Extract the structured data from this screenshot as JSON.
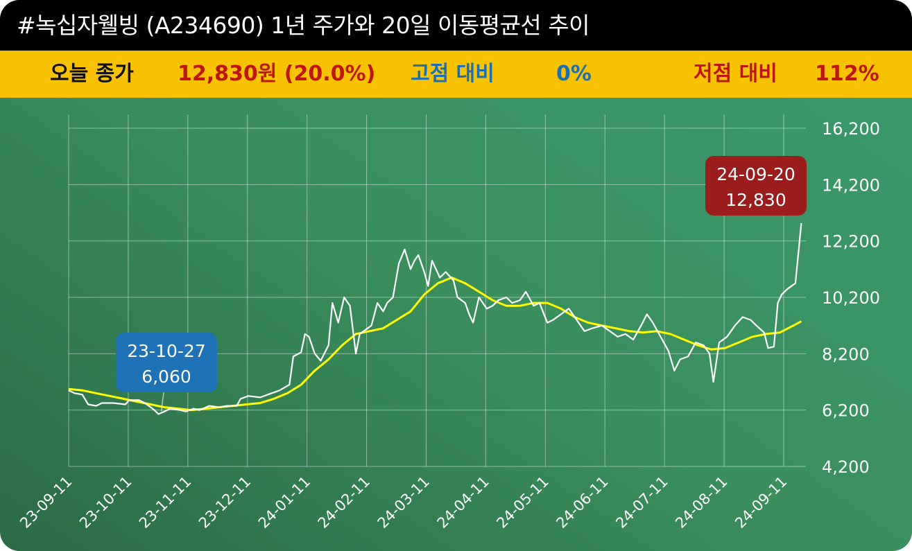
{
  "header": {
    "title": "#녹십자웰빙 (A234690) 1년 주가와 20일 이동평균선 추이"
  },
  "stats": {
    "close_label": "오늘 종가",
    "close_value": "12,830원 (20.0%)",
    "high_label": "고점 대비",
    "high_value": "0%",
    "low_label": "저점 대비",
    "low_value": "112%"
  },
  "colors": {
    "background_green": "#3a8f5c",
    "header_black": "#000000",
    "stats_yellow": "#f7c300",
    "price_line": "#ffffff",
    "ma_line": "#ffff00",
    "close_label": "#111111",
    "red_value": "#c0150f",
    "blue_value": "#1f6fb0",
    "low_callout": "#1f72b5",
    "high_callout": "#9b1c1c"
  },
  "chart_data": {
    "type": "line",
    "x_dates": [
      "23-09-11",
      "23-10-11",
      "23-11-11",
      "23-12-11",
      "24-01-11",
      "24-02-11",
      "24-03-11",
      "24-04-11",
      "24-05-11",
      "24-06-11",
      "24-07-11",
      "24-08-11",
      "24-09-11"
    ],
    "yticks": [
      "16,200",
      "14,200",
      "12,200",
      "10,200",
      "8,200",
      "6,200",
      "4,200"
    ],
    "ylim": [
      4200,
      16200
    ],
    "grid": true,
    "series": [
      {
        "key": "price",
        "points": [
          [
            "2023-09-11",
            6900
          ],
          [
            "2023-09-14",
            6800
          ],
          [
            "2023-09-18",
            6750
          ],
          [
            "2023-09-21",
            6400
          ],
          [
            "2023-09-25",
            6350
          ],
          [
            "2023-09-28",
            6450
          ],
          [
            "2023-10-04",
            6450
          ],
          [
            "2023-10-10",
            6400
          ],
          [
            "2023-10-12",
            6550
          ],
          [
            "2023-10-17",
            6550
          ],
          [
            "2023-10-20",
            6450
          ],
          [
            "2023-10-24",
            6250
          ],
          [
            "2023-10-27",
            6060
          ],
          [
            "2023-10-30",
            6150
          ],
          [
            "2023-11-02",
            6250
          ],
          [
            "2023-11-07",
            6200
          ],
          [
            "2023-11-10",
            6150
          ],
          [
            "2023-11-14",
            6250
          ],
          [
            "2023-11-17",
            6200
          ],
          [
            "2023-11-22",
            6350
          ],
          [
            "2023-11-27",
            6300
          ],
          [
            "2023-12-01",
            6350
          ],
          [
            "2023-12-06",
            6350
          ],
          [
            "2023-12-08",
            6600
          ],
          [
            "2023-12-12",
            6700
          ],
          [
            "2023-12-18",
            6650
          ],
          [
            "2023-12-22",
            6750
          ],
          [
            "2023-12-28",
            6900
          ],
          [
            "2024-01-02",
            7100
          ],
          [
            "2024-01-04",
            8100
          ],
          [
            "2024-01-08",
            8250
          ],
          [
            "2024-01-10",
            8900
          ],
          [
            "2024-01-12",
            8800
          ],
          [
            "2024-01-15",
            8200
          ],
          [
            "2024-01-18",
            7950
          ],
          [
            "2024-01-22",
            8500
          ],
          [
            "2024-01-24",
            10000
          ],
          [
            "2024-01-27",
            9300
          ],
          [
            "2024-01-30",
            10200
          ],
          [
            "2024-02-02",
            9900
          ],
          [
            "2024-02-05",
            8200
          ],
          [
            "2024-02-07",
            8900
          ],
          [
            "2024-02-13",
            9200
          ],
          [
            "2024-02-16",
            10000
          ],
          [
            "2024-02-19",
            9700
          ],
          [
            "2024-02-21",
            10000
          ],
          [
            "2024-02-24",
            10200
          ],
          [
            "2024-02-27",
            11400
          ],
          [
            "2024-03-01",
            11900
          ],
          [
            "2024-03-04",
            11200
          ],
          [
            "2024-03-06",
            11500
          ],
          [
            "2024-03-08",
            11700
          ],
          [
            "2024-03-11",
            11100
          ],
          [
            "2024-03-13",
            10600
          ],
          [
            "2024-03-15",
            11500
          ],
          [
            "2024-03-19",
            10900
          ],
          [
            "2024-03-22",
            11100
          ],
          [
            "2024-03-26",
            10800
          ],
          [
            "2024-03-28",
            10200
          ],
          [
            "2024-04-01",
            10000
          ],
          [
            "2024-04-03",
            9600
          ],
          [
            "2024-04-05",
            9300
          ],
          [
            "2024-04-08",
            10200
          ],
          [
            "2024-04-12",
            9800
          ],
          [
            "2024-04-15",
            9900
          ],
          [
            "2024-04-18",
            10100
          ],
          [
            "2024-04-22",
            10200
          ],
          [
            "2024-04-25",
            10000
          ],
          [
            "2024-04-29",
            10100
          ],
          [
            "2024-05-02",
            10400
          ],
          [
            "2024-05-06",
            9900
          ],
          [
            "2024-05-09",
            10000
          ],
          [
            "2024-05-13",
            9300
          ],
          [
            "2024-05-16",
            9400
          ],
          [
            "2024-05-20",
            9600
          ],
          [
            "2024-05-24",
            9800
          ],
          [
            "2024-05-28",
            9400
          ],
          [
            "2024-06-01",
            9000
          ],
          [
            "2024-06-05",
            9100
          ],
          [
            "2024-06-10",
            9200
          ],
          [
            "2024-06-14",
            9000
          ],
          [
            "2024-06-18",
            8800
          ],
          [
            "2024-06-22",
            8900
          ],
          [
            "2024-06-26",
            8700
          ],
          [
            "2024-06-30",
            9200
          ],
          [
            "2024-07-03",
            9600
          ],
          [
            "2024-07-06",
            9300
          ],
          [
            "2024-07-10",
            8800
          ],
          [
            "2024-07-14",
            8300
          ],
          [
            "2024-07-17",
            7600
          ],
          [
            "2024-07-20",
            8000
          ],
          [
            "2024-07-24",
            8100
          ],
          [
            "2024-07-28",
            8600
          ],
          [
            "2024-08-01",
            8500
          ],
          [
            "2024-08-04",
            8200
          ],
          [
            "2024-08-06",
            7200
          ],
          [
            "2024-08-09",
            8600
          ],
          [
            "2024-08-13",
            8800
          ],
          [
            "2024-08-17",
            9200
          ],
          [
            "2024-08-21",
            9500
          ],
          [
            "2024-08-25",
            9400
          ],
          [
            "2024-08-28",
            9200
          ],
          [
            "2024-09-01",
            8950
          ],
          [
            "2024-09-03",
            8400
          ],
          [
            "2024-09-06",
            8450
          ],
          [
            "2024-09-08",
            10000
          ],
          [
            "2024-09-10",
            10300
          ],
          [
            "2024-09-13",
            10500
          ],
          [
            "2024-09-17",
            10700
          ],
          [
            "2024-09-20",
            12830
          ]
        ]
      },
      {
        "key": "ma20",
        "points": [
          [
            "2023-09-11",
            6950
          ],
          [
            "2023-09-18",
            6900
          ],
          [
            "2023-09-25",
            6800
          ],
          [
            "2023-10-02",
            6700
          ],
          [
            "2023-10-09",
            6600
          ],
          [
            "2023-10-16",
            6500
          ],
          [
            "2023-10-23",
            6400
          ],
          [
            "2023-10-30",
            6300
          ],
          [
            "2023-11-06",
            6250
          ],
          [
            "2023-11-13",
            6200
          ],
          [
            "2023-11-20",
            6250
          ],
          [
            "2023-11-27",
            6300
          ],
          [
            "2023-12-04",
            6350
          ],
          [
            "2023-12-11",
            6400
          ],
          [
            "2023-12-18",
            6450
          ],
          [
            "2023-12-25",
            6600
          ],
          [
            "2024-01-01",
            6800
          ],
          [
            "2024-01-08",
            7100
          ],
          [
            "2024-01-15",
            7600
          ],
          [
            "2024-01-22",
            8000
          ],
          [
            "2024-01-29",
            8500
          ],
          [
            "2024-02-05",
            8900
          ],
          [
            "2024-02-12",
            9000
          ],
          [
            "2024-02-19",
            9100
          ],
          [
            "2024-02-26",
            9400
          ],
          [
            "2024-03-04",
            9700
          ],
          [
            "2024-03-11",
            10300
          ],
          [
            "2024-03-18",
            10700
          ],
          [
            "2024-03-25",
            10900
          ],
          [
            "2024-04-01",
            10700
          ],
          [
            "2024-04-08",
            10400
          ],
          [
            "2024-04-15",
            10100
          ],
          [
            "2024-04-22",
            9900
          ],
          [
            "2024-04-29",
            9900
          ],
          [
            "2024-05-06",
            10000
          ],
          [
            "2024-05-13",
            10000
          ],
          [
            "2024-05-20",
            9800
          ],
          [
            "2024-05-27",
            9500
          ],
          [
            "2024-06-03",
            9300
          ],
          [
            "2024-06-10",
            9200
          ],
          [
            "2024-06-17",
            9100
          ],
          [
            "2024-06-24",
            9000
          ],
          [
            "2024-07-01",
            8950
          ],
          [
            "2024-07-08",
            9000
          ],
          [
            "2024-07-15",
            8900
          ],
          [
            "2024-07-22",
            8700
          ],
          [
            "2024-07-29",
            8500
          ],
          [
            "2024-08-05",
            8350
          ],
          [
            "2024-08-12",
            8400
          ],
          [
            "2024-08-19",
            8600
          ],
          [
            "2024-08-26",
            8800
          ],
          [
            "2024-09-02",
            8900
          ],
          [
            "2024-09-09",
            8950
          ],
          [
            "2024-09-16",
            9200
          ],
          [
            "2024-09-20",
            9350
          ]
        ]
      }
    ],
    "annotations": [
      {
        "kind": "low",
        "date_label": "23-10-27",
        "value_label": "6,060",
        "x": "2023-10-27",
        "y": 6060
      },
      {
        "kind": "high",
        "date_label": "24-09-20",
        "value_label": "12,830",
        "x": "2024-09-20",
        "y": 12830
      }
    ]
  }
}
